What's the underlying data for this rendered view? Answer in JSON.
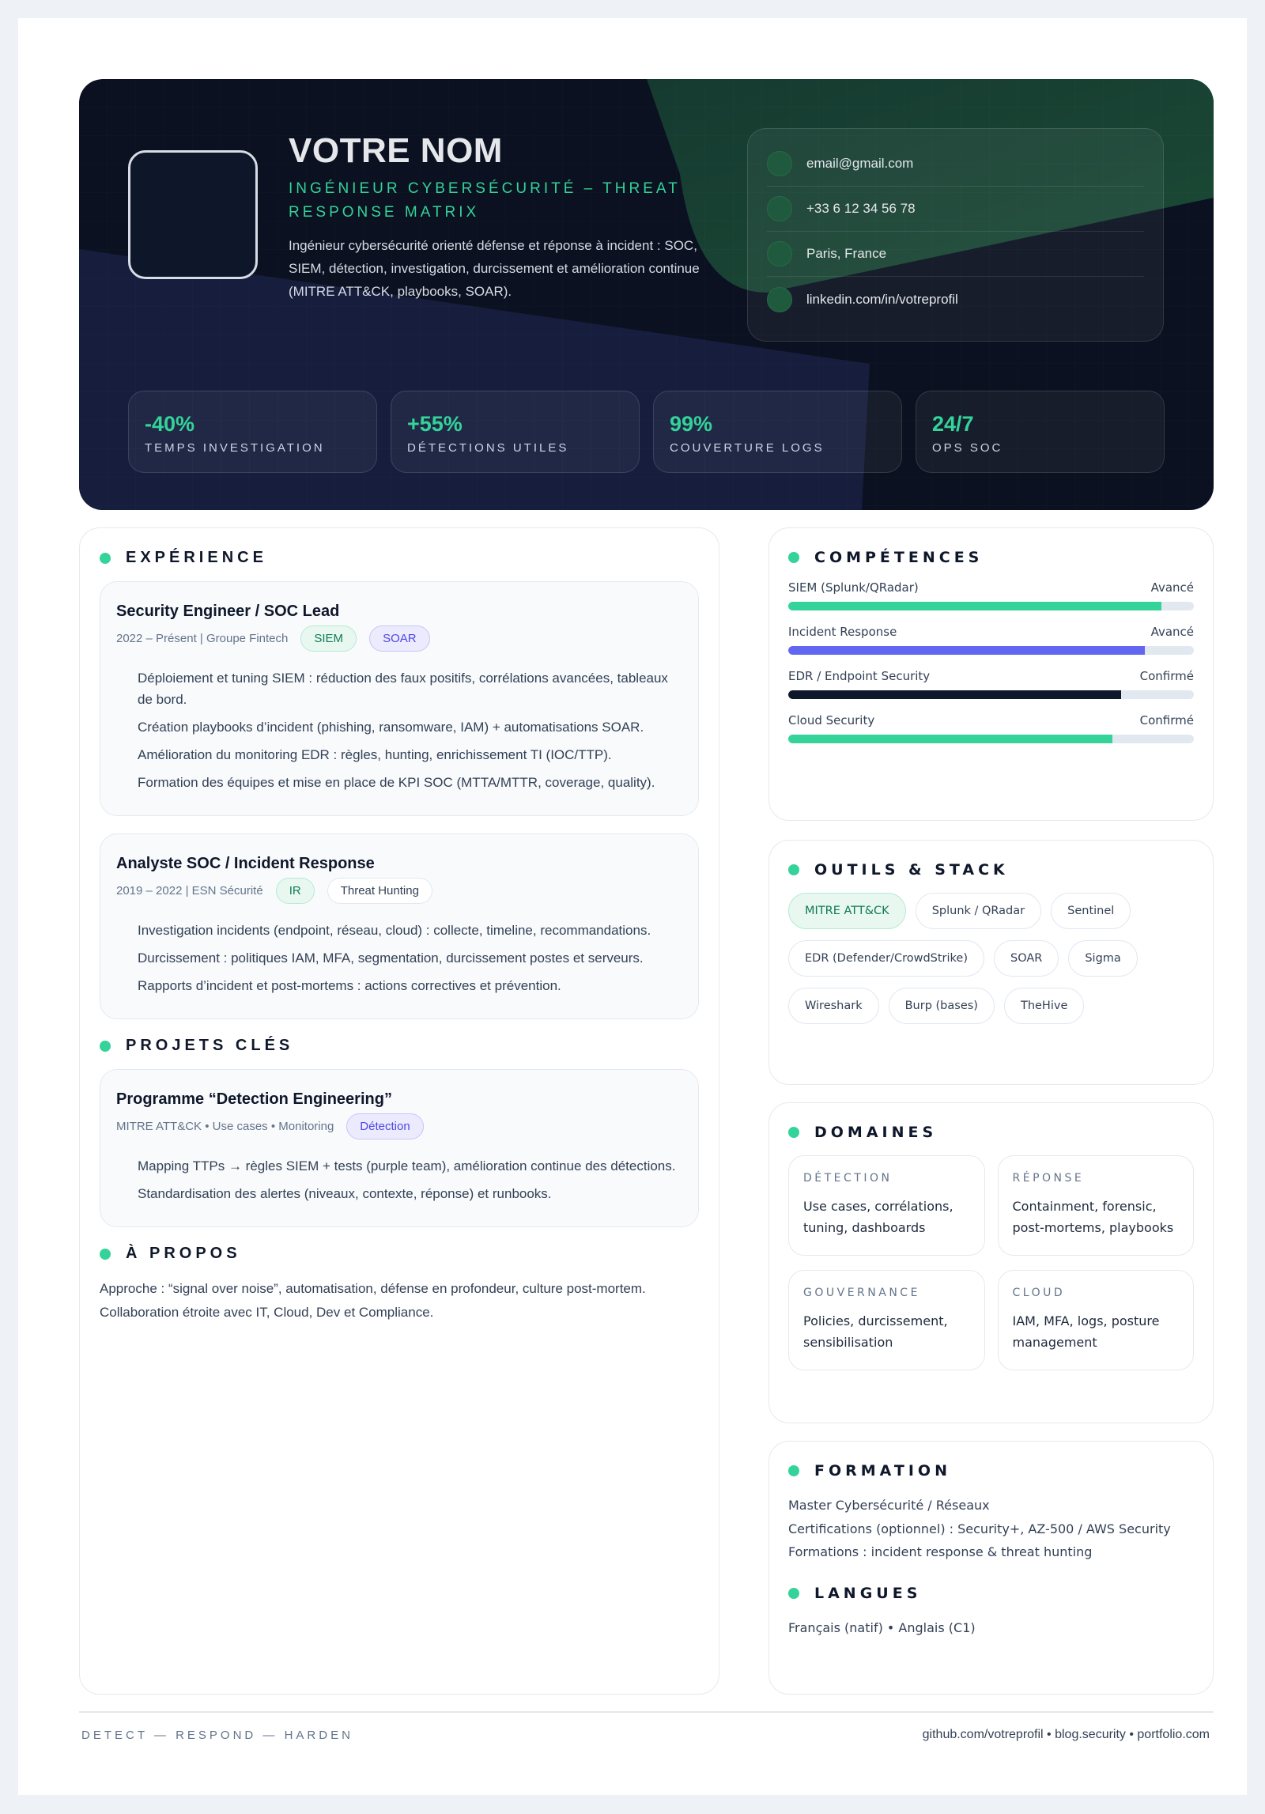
{
  "header": {
    "name": "VOTRE NOM",
    "subtitle": "Ingénieur Cybersécurité – Threat Response Matrix",
    "description": "Ingénieur cybersécurité orienté défense et réponse à incident : SOC, SIEM, détection, investigation, durcissement et amélioration continue (MITRE ATT&CK, playbooks, SOAR).",
    "contact": [
      "email@gmail.com",
      "+33 6 12 34 56 78",
      "Paris, France",
      "linkedin.com/in/votreprofil"
    ],
    "stats": [
      {
        "value": "-40%",
        "label": "Temps investigation"
      },
      {
        "value": "+55%",
        "label": "Détections utiles"
      },
      {
        "value": "99%",
        "label": "Couverture logs"
      },
      {
        "value": "24/7",
        "label": "Ops SOC"
      }
    ]
  },
  "experience": {
    "title": "Expérience",
    "jobs": [
      {
        "title": "Security Engineer / SOC Lead",
        "meta": "2022 – Présent | Groupe Fintech",
        "tags": [
          "SIEM",
          "SOAR"
        ],
        "bullets": [
          "Déploiement et tuning SIEM : réduction des faux positifs, corrélations avancées, tableaux de bord.",
          "Création playbooks d’incident (phishing, ransomware, IAM) + automatisations SOAR.",
          "Amélioration du monitoring EDR : règles, hunting, enrichissement TI (IOC/TTP).",
          "Formation des équipes et mise en place de KPI SOC (MTTA/MTTR, coverage, quality)."
        ]
      },
      {
        "title": "Analyste SOC / Incident Response",
        "meta": "2019 – 2022 | ESN Sécurité",
        "tags": [
          "IR",
          "Threat Hunting"
        ],
        "bullets": [
          "Investigation incidents (endpoint, réseau, cloud) : collecte, timeline, recommandations.",
          "Durcissement : politiques IAM, MFA, segmentation, durcissement postes et serveurs.",
          "Rapports d’incident et post-mortems : actions correctives et prévention."
        ]
      }
    ]
  },
  "projects": {
    "title": "Projets clés",
    "items": [
      {
        "title": "Programme “Detection Engineering”",
        "meta": "MITRE ATT&CK • Use cases • Monitoring",
        "tag": "Détection",
        "bullets": [
          "Mapping TTPs → règles SIEM + tests (purple team), amélioration continue des détections.",
          "Standardisation des alertes (niveaux, contexte, réponse) et runbooks."
        ]
      }
    ]
  },
  "about": {
    "title": "À propos",
    "lines": [
      "Approche : “signal over noise”, automatisation, défense en profondeur, culture post-mortem.",
      "Collaboration étroite avec IT, Cloud, Dev et Compliance."
    ]
  },
  "skills": {
    "title": "Compétences",
    "items": [
      {
        "name": "SIEM (Splunk/QRadar)",
        "level": "Avancé",
        "percent": 92,
        "color": "#34d399"
      },
      {
        "name": "Incident Response",
        "level": "Avancé",
        "percent": 88,
        "color": "#6366f1"
      },
      {
        "name": "EDR / Endpoint Security",
        "level": "Confirmé",
        "percent": 82,
        "color": "#0f172a"
      },
      {
        "name": "Cloud Security",
        "level": "Confirmé",
        "percent": 80,
        "color": "#34d399"
      }
    ]
  },
  "tools": {
    "title": "Outils & Stack",
    "items": [
      "MITRE ATT&CK",
      "Splunk / QRadar",
      "Sentinel",
      "EDR (Defender/CrowdStrike)",
      "SOAR",
      "Sigma",
      "Wireshark",
      "Burp (bases)",
      "TheHive"
    ],
    "highlighted": "MITRE ATT&CK"
  },
  "domains": {
    "title": "Domaines",
    "items": [
      {
        "key": "Détection",
        "value": "Use cases, corrélations, tuning, dashboards"
      },
      {
        "key": "Réponse",
        "value": "Containment, forensic, post-mortems, playbooks"
      },
      {
        "key": "Gouvernance",
        "value": "Policies, durcissement, sensibilisation"
      },
      {
        "key": "Cloud",
        "value": "IAM, MFA, logs, posture management"
      }
    ]
  },
  "education": {
    "title": "Formation",
    "lines": [
      "Master Cybersécurité / Réseaux",
      "Certifications (optionnel) : Security+, AZ-500 / AWS Security",
      "Formations : incident response & threat hunting"
    ]
  },
  "languages": {
    "title": "Langues",
    "text": "Français (natif) • Anglais (C1)"
  },
  "footer": {
    "left": "DETECT — RESPOND — HARDEN",
    "right": "github.com/votreprofil • blog.security • portfolio.com"
  },
  "colors": {
    "accent": "#34d399",
    "indigo": "#6366f1",
    "dark": "#0b1120"
  }
}
